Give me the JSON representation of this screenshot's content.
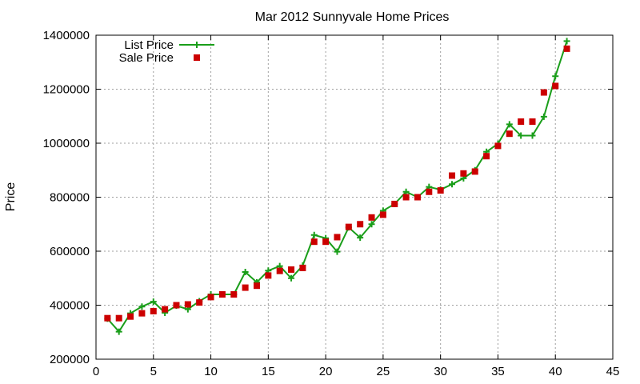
{
  "chart_data": {
    "type": "line",
    "title": "Mar 2012 Sunnyvale Home Prices",
    "xlabel": "",
    "ylabel": "Price",
    "xlim": [
      0,
      45
    ],
    "ylim": [
      200000,
      1400000
    ],
    "xticks": [
      0,
      5,
      10,
      15,
      20,
      25,
      30,
      35,
      40,
      45
    ],
    "yticks": [
      200000,
      400000,
      600000,
      800000,
      1000000,
      1200000,
      1400000
    ],
    "grid": true,
    "legend_position": "top-left",
    "series": [
      {
        "name": "List Price",
        "style": "line+plus-markers",
        "color": "#1a9e1a",
        "x": [
          1,
          2,
          3,
          4,
          5,
          6,
          7,
          8,
          9,
          10,
          11,
          12,
          13,
          14,
          15,
          16,
          17,
          18,
          19,
          20,
          21,
          22,
          23,
          24,
          25,
          26,
          27,
          28,
          29,
          30,
          31,
          32,
          33,
          34,
          35,
          36,
          37,
          38,
          39,
          40,
          41
        ],
        "values": [
          350000,
          302000,
          370000,
          395000,
          413000,
          372000,
          398000,
          385000,
          415000,
          440000,
          440000,
          440000,
          523000,
          485000,
          528000,
          545000,
          500000,
          547000,
          660000,
          648000,
          598000,
          688000,
          650000,
          700000,
          750000,
          775000,
          820000,
          800000,
          838000,
          828000,
          848000,
          870000,
          900000,
          968000,
          998000,
          1070000,
          1028000,
          1028000,
          1098000,
          1248000,
          1378000
        ]
      },
      {
        "name": "Sale Price",
        "style": "square-markers",
        "color": "#cc0000",
        "x": [
          1,
          2,
          3,
          4,
          5,
          6,
          7,
          8,
          9,
          10,
          11,
          12,
          13,
          14,
          15,
          16,
          17,
          18,
          19,
          20,
          21,
          22,
          23,
          24,
          25,
          26,
          27,
          28,
          29,
          30,
          31,
          32,
          33,
          34,
          35,
          36,
          37,
          38,
          39,
          40,
          41
        ],
        "values": [
          352000,
          352000,
          358000,
          370000,
          378000,
          385000,
          400000,
          403000,
          410000,
          430000,
          440000,
          440000,
          465000,
          472000,
          510000,
          527000,
          532000,
          538000,
          635000,
          635000,
          652000,
          690000,
          700000,
          725000,
          735000,
          775000,
          800000,
          800000,
          820000,
          825000,
          880000,
          888000,
          895000,
          952000,
          990000,
          1035000,
          1080000,
          1080000,
          1188000,
          1212000,
          1350000
        ]
      }
    ]
  }
}
